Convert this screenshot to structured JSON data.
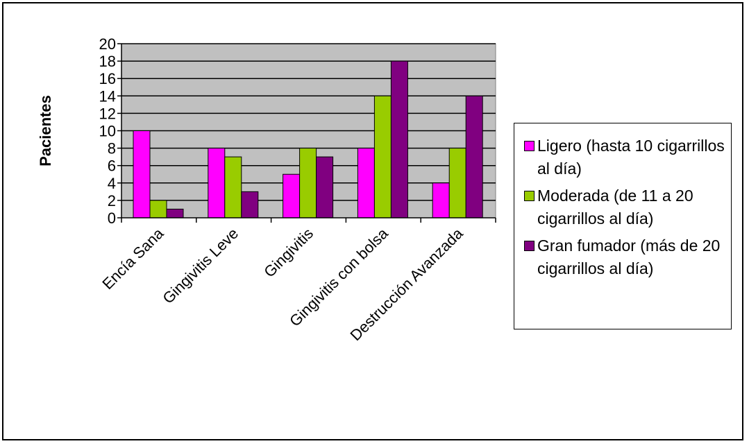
{
  "chart_data": {
    "type": "bar",
    "title": "",
    "xlabel": "",
    "ylabel": "Pacientes",
    "ylim": [
      0,
      20
    ],
    "yticks": [
      "0",
      "2",
      "4",
      "6",
      "8",
      "10",
      "12",
      "14",
      "16",
      "18",
      "20"
    ],
    "grid": true,
    "legend_position": "right",
    "categories": [
      "Encía Sana",
      "Gingivitis Leve",
      "Gingivitis",
      "Gingivitis con bolsa",
      "Destrucción Avanzada"
    ],
    "series": [
      {
        "name": "Ligero (hasta 10 cigarrillos al día)",
        "color": "#ff00ff",
        "values": [
          10,
          8,
          5,
          8,
          4
        ]
      },
      {
        "name": "Moderada (de 11 a 20 cigarrillos al día)",
        "color": "#99cc00",
        "values": [
          2,
          7,
          8,
          14,
          8
        ]
      },
      {
        "name": "Gran fumador (más de 20 cigarrillos al día)",
        "color": "#800080",
        "values": [
          1,
          3,
          7,
          18,
          14
        ]
      }
    ],
    "plot_background": "#c0c0c0"
  }
}
